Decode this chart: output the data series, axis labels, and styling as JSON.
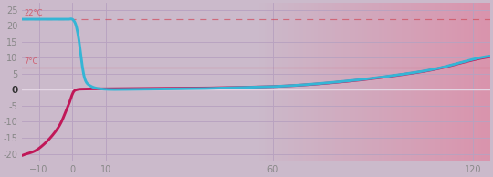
{
  "title": "",
  "xlim": [
    -15,
    125
  ],
  "ylim": [
    -22,
    27
  ],
  "xticks": [
    -10,
    0,
    10,
    60,
    120
  ],
  "yticks": [
    -20,
    -15,
    -10,
    -5,
    0,
    5,
    10,
    15,
    20,
    25
  ],
  "zero_line_y": 0,
  "ref_line_7": 7,
  "ref_line_22": 22,
  "label_7": "7°C",
  "label_22": "22°C",
  "bg_color": "#cbbacb",
  "grid_color": "#b8a2c0",
  "ref7_color": "#d05060",
  "ref22_color": "#d05060",
  "zero_color": "#e8dce8",
  "cooler_color": "#35b5d5",
  "sample_color": "#c01858",
  "cooler_data": {
    "x": [
      -15,
      -13,
      -11,
      -9,
      -7,
      -5,
      -3,
      -2,
      -1,
      0,
      0.5,
      1,
      1.5,
      2,
      2.5,
      3,
      3.5,
      4,
      5,
      6,
      7,
      8,
      10,
      15,
      20,
      30,
      40,
      50,
      60,
      70,
      80,
      90,
      100,
      110,
      120,
      125
    ],
    "y": [
      22.0,
      22.0,
      22.0,
      22.0,
      22.0,
      22.0,
      22.0,
      22.0,
      22.0,
      22.0,
      21.5,
      20.5,
      18.5,
      15.5,
      11.5,
      7.5,
      4.5,
      2.8,
      1.5,
      0.9,
      0.55,
      0.35,
      0.15,
      0.1,
      0.15,
      0.25,
      0.4,
      0.7,
      1.0,
      1.6,
      2.5,
      3.6,
      5.0,
      6.8,
      9.5,
      10.5
    ]
  },
  "sample_data": {
    "x": [
      -15,
      -13,
      -11,
      -9,
      -7,
      -5,
      -3,
      -2,
      -1,
      0,
      0.5,
      1,
      1.5,
      2,
      3,
      5,
      7,
      10,
      15,
      20,
      30,
      40,
      50,
      60,
      70,
      80,
      90,
      100,
      110,
      120,
      125
    ],
    "y": [
      -20.5,
      -19.8,
      -19.0,
      -17.5,
      -15.5,
      -13.0,
      -9.5,
      -7.0,
      -4.5,
      -1.5,
      -0.5,
      -0.1,
      0.05,
      0.15,
      0.2,
      0.25,
      0.28,
      0.3,
      0.35,
      0.4,
      0.45,
      0.55,
      0.75,
      1.0,
      1.55,
      2.4,
      3.5,
      4.9,
      6.7,
      9.3,
      10.3
    ]
  },
  "gradient_start": 55,
  "gradient_color": "#e87090",
  "gradient_max_alpha": 0.52
}
